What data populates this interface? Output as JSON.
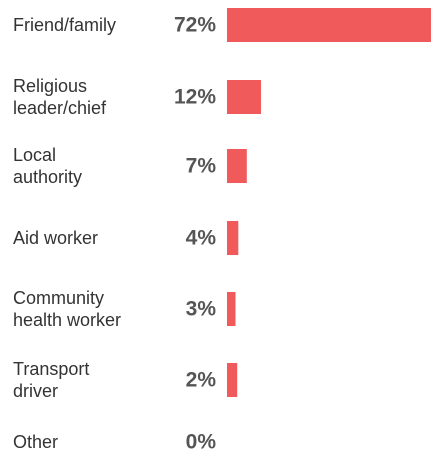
{
  "chart_data": {
    "type": "bar",
    "orientation": "horizontal",
    "title": "",
    "xlabel": "",
    "ylabel": "",
    "categories": [
      [
        "Friend/family"
      ],
      [
        "Religious",
        "leader/chief"
      ],
      [
        "Local",
        "authority"
      ],
      [
        "Aid worker"
      ],
      [
        "Community",
        "health worker"
      ],
      [
        "Transport",
        "driver"
      ],
      [
        "Other"
      ]
    ],
    "values": [
      72,
      12,
      7,
      4,
      3,
      2,
      0
    ],
    "value_labels": [
      "72%",
      "12%",
      "7%",
      "4%",
      "3%",
      "2%",
      "0%"
    ],
    "xlim": [
      0,
      72
    ],
    "bar_color": "#f05a5a",
    "grid": false,
    "legend": "none"
  }
}
